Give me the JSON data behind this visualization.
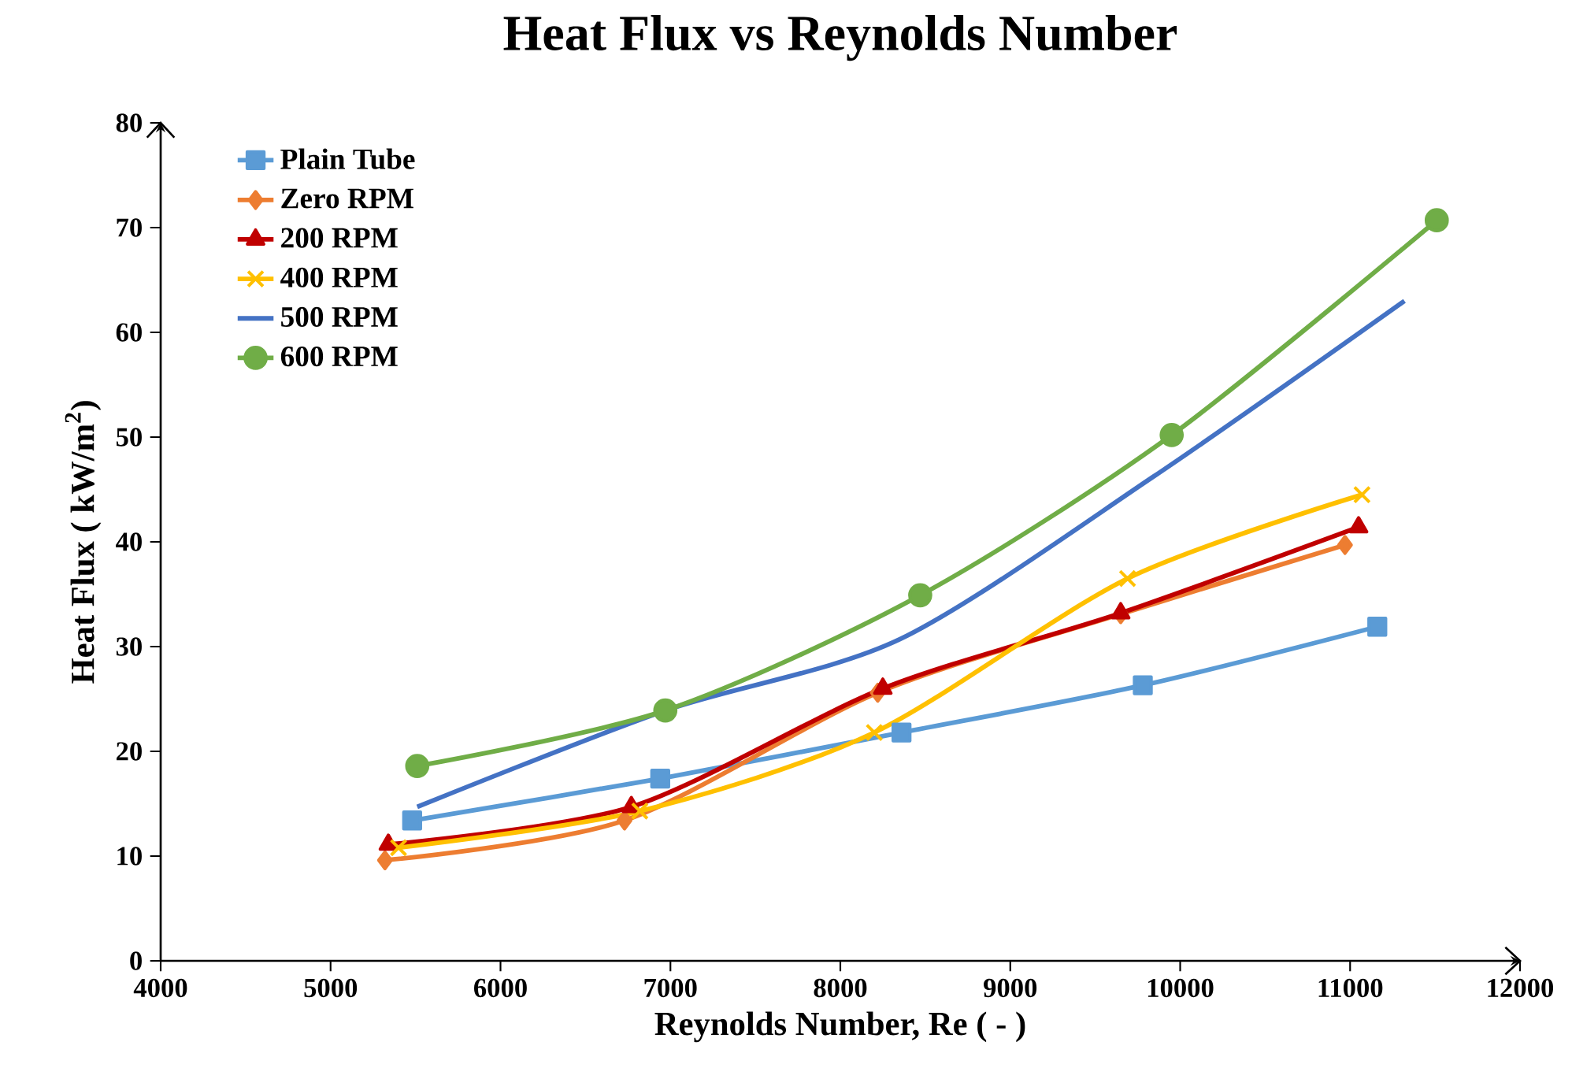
{
  "chart_data": {
    "type": "line",
    "title": "Heat Flux vs Reynolds Number",
    "xlabel": "Reynolds Number, Re ( - )",
    "ylabel": "Heat Flux ( kW/m$^{2}$)",
    "xlim": [
      4000,
      12000
    ],
    "xticks": [
      4000,
      5000,
      6000,
      7000,
      8000,
      9000,
      10000,
      11000,
      12000
    ],
    "ylim": [
      0,
      80
    ],
    "yticks": [
      0,
      10,
      20,
      30,
      40,
      50,
      60,
      70,
      80
    ],
    "grid": false,
    "legend": "top left",
    "line_style": "solid",
    "series": [
      {
        "name": "Plain Tube",
        "color": "#5b9bd5",
        "marker": "square",
        "x": [
          5480,
          6940,
          8360,
          9780,
          11160
        ],
        "values": [
          13.4,
          17.4,
          21.8,
          26.3,
          31.9
        ]
      },
      {
        "name": "Zero RPM",
        "color": "#ed7d31",
        "marker": "diamond",
        "x": [
          5320,
          6730,
          8220,
          9650,
          10970
        ],
        "values": [
          9.6,
          13.4,
          25.6,
          33.1,
          39.7
        ]
      },
      {
        "name": "200 RPM",
        "color": "#c00000",
        "marker": "triangle",
        "x": [
          5340,
          6770,
          8250,
          9650,
          11050
        ],
        "values": [
          11.1,
          14.7,
          26.0,
          33.2,
          41.4
        ]
      },
      {
        "name": "400 RPM",
        "color": "#ffc000",
        "marker": "cross",
        "x": [
          5400,
          6820,
          8200,
          9690,
          11070
        ],
        "values": [
          10.8,
          14.3,
          21.8,
          36.5,
          44.5
        ]
      },
      {
        "name": "500 RPM",
        "color": "#4472c4",
        "marker": "none",
        "x": [
          5510,
          6970,
          8350,
          9840,
          11320
        ],
        "values": [
          14.7,
          23.9,
          30.7,
          46.2,
          63.0
        ]
      },
      {
        "name": "600 RPM",
        "color": "#70ad47",
        "marker": "circle",
        "x": [
          5510,
          6970,
          8470,
          9950,
          11510
        ],
        "values": [
          18.6,
          23.9,
          34.9,
          50.2,
          70.7
        ]
      }
    ]
  }
}
